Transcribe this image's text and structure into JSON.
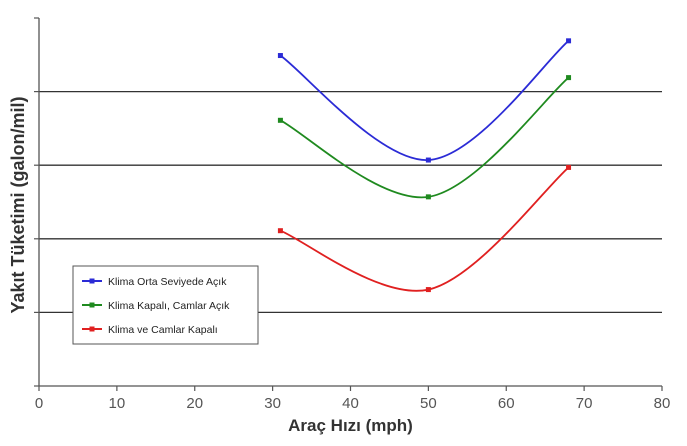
{
  "chart_data": {
    "type": "line",
    "xlabel": "Araç Hızı (mph)",
    "ylabel": "Yakıt Tüketimi (galon/mil)",
    "xlim": [
      0,
      80
    ],
    "xticks": [
      0,
      10,
      20,
      30,
      40,
      50,
      60,
      70,
      80
    ],
    "ylim": [
      0,
      5
    ],
    "y_gridlines": [
      1,
      2,
      3,
      4
    ],
    "y_tick_labels_shown": false,
    "grid": "horizontal",
    "legend_position": "bottom-left",
    "series": [
      {
        "name": "Klima Orta Seviyede Açık",
        "color": "#2b2bd6",
        "points": [
          [
            31,
            4.49
          ],
          [
            50,
            3.07
          ],
          [
            68,
            4.69
          ]
        ]
      },
      {
        "name": "Klima Kapalı, Camlar Açık",
        "color": "#1f8a1f",
        "points": [
          [
            31,
            3.61
          ],
          [
            50,
            2.57
          ],
          [
            68,
            4.19
          ]
        ]
      },
      {
        "name": "Klima ve Camlar Kapalı",
        "color": "#e02020",
        "points": [
          [
            31,
            2.11
          ],
          [
            50,
            1.31
          ],
          [
            68,
            2.97
          ]
        ]
      }
    ]
  }
}
